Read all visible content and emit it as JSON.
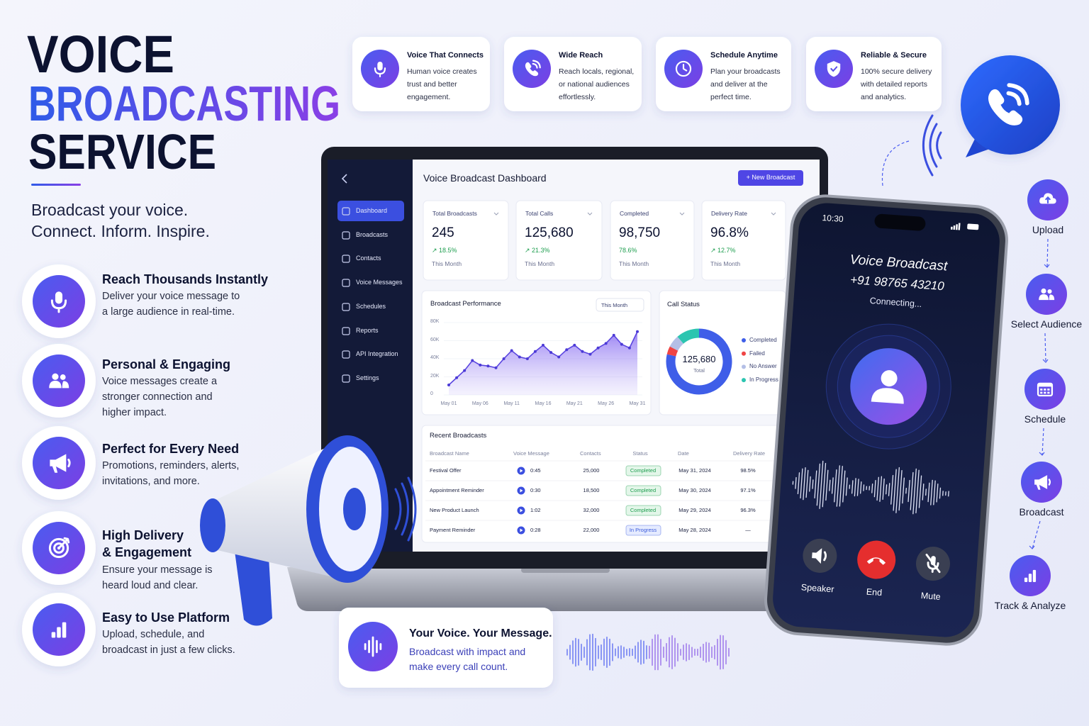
{
  "hero": {
    "title_line1": "VOICE",
    "title_line2": "BROADCASTING",
    "title_line3": "SERVICE",
    "tagline_line1": "Broadcast your voice.",
    "tagline_line2": "Connect. Inform. Inspire."
  },
  "features": [
    {
      "title": "Reach Thousands Instantly",
      "text": "Deliver your voice message to a large audience in real-time."
    },
    {
      "title": "Personal & Engaging",
      "text": "Voice messages create a stronger connection and higher impact."
    },
    {
      "title": "Perfect for Every Need",
      "text": "Promotions, reminders, alerts, invitations, and more."
    },
    {
      "title": "High Delivery & Engagement",
      "text": "Ensure your message is heard loud and clear."
    },
    {
      "title": "Easy to Use Platform",
      "text": "Upload, schedule, and broadcast in just a few clicks."
    }
  ],
  "highlights": [
    {
      "title": "Voice That Connects",
      "text": "Human voice creates trust and better engagement."
    },
    {
      "title": "Wide Reach",
      "text": "Reach locals, regional, or national audiences effortlessly."
    },
    {
      "title": "Schedule Anytime",
      "text": "Plan your broadcasts and deliver at the perfect time."
    },
    {
      "title": "Reliable & Secure",
      "text": "100% secure delivery with detailed reports and analytics."
    }
  ],
  "dashboard": {
    "title": "Voice Broadcast Dashboard",
    "button": "+ New Broadcast",
    "nav": [
      "Dashboard",
      "Broadcasts",
      "Contacts",
      "Voice Messages",
      "Schedules",
      "Reports",
      "API Integration",
      "Settings"
    ],
    "stats": [
      {
        "label": "Total Broadcasts",
        "value": "245",
        "change": "↗ 18.5%",
        "period": "This Month"
      },
      {
        "label": "Total Calls",
        "value": "125,680",
        "change": "↗ 21.3%",
        "period": "This Month"
      },
      {
        "label": "Completed",
        "value": "98,750",
        "change": "78.6%",
        "period": "This Month"
      },
      {
        "label": "Delivery Rate",
        "value": "96.8%",
        "change": "↗ 12.7%",
        "period": "This Month"
      }
    ],
    "recent": {
      "title": "Recent Broadcasts",
      "columns": [
        "Broadcast Name",
        "Voice Message",
        "Contacts",
        "Status",
        "Date",
        "Delivery Rate"
      ],
      "rows": [
        [
          "Festival Offer",
          "0:45",
          "25,000",
          "Completed",
          "May 31, 2024",
          "98.5%"
        ],
        [
          "Appointment Reminder",
          "0:30",
          "18,500",
          "Completed",
          "May 30, 2024",
          "97.1%"
        ],
        [
          "New Product Launch",
          "1:02",
          "32,000",
          "Completed",
          "May 29, 2024",
          "96.3%"
        ],
        [
          "Payment Reminder",
          "0:28",
          "22,000",
          "In Progress",
          "May 28, 2024",
          "—"
        ]
      ]
    }
  },
  "chart_data": [
    {
      "type": "line",
      "title": "Broadcast Performance",
      "filter": "This Month",
      "categories": [
        "May 01",
        null,
        null,
        null,
        "May 06",
        null,
        null,
        null,
        "May 11",
        null,
        null,
        null,
        "May 16",
        null,
        null,
        null,
        "May 21",
        null,
        null,
        null,
        "May 26",
        null,
        null,
        null,
        "May 31"
      ],
      "values": [
        11,
        19,
        27,
        38,
        33,
        32,
        30,
        40,
        49,
        42,
        40,
        48,
        55,
        47,
        42,
        50,
        55,
        48,
        45,
        52,
        57,
        66,
        56,
        52,
        70
      ],
      "color": "#7b5cf0",
      "ylim": [
        0,
        80
      ],
      "yticks": [
        0,
        {
          "value": 20,
          "label": "20K"
        },
        {
          "value": 40,
          "label": "40K"
        },
        {
          "value": 60,
          "label": "60K"
        },
        {
          "value": 80,
          "label": "80K"
        }
      ],
      "grid": true
    },
    {
      "type": "pie",
      "title": "Call Status",
      "center_value": "125,680",
      "center_label": "Total",
      "categories": [
        "Completed",
        "Failed",
        "No Answer",
        "In Progress"
      ],
      "values": [
        78.6,
        4,
        6,
        11.4
      ],
      "colors": [
        "#3f5ee8",
        "#ef4444",
        "#b4bfe6",
        "#2cc5b0"
      ]
    }
  ],
  "phone": {
    "time": "10:30",
    "title": "Voice Broadcast",
    "number": "+91 98765 43210",
    "status": "Connecting...",
    "buttons": [
      "Speaker",
      "End",
      "Mute"
    ]
  },
  "steps": [
    "Upload",
    "Select Audience",
    "Schedule",
    "Broadcast",
    "Track & Analyze"
  ],
  "promo": {
    "title": "Your Voice. Your Message.",
    "text": "Broadcast with impact and make every call count."
  }
}
